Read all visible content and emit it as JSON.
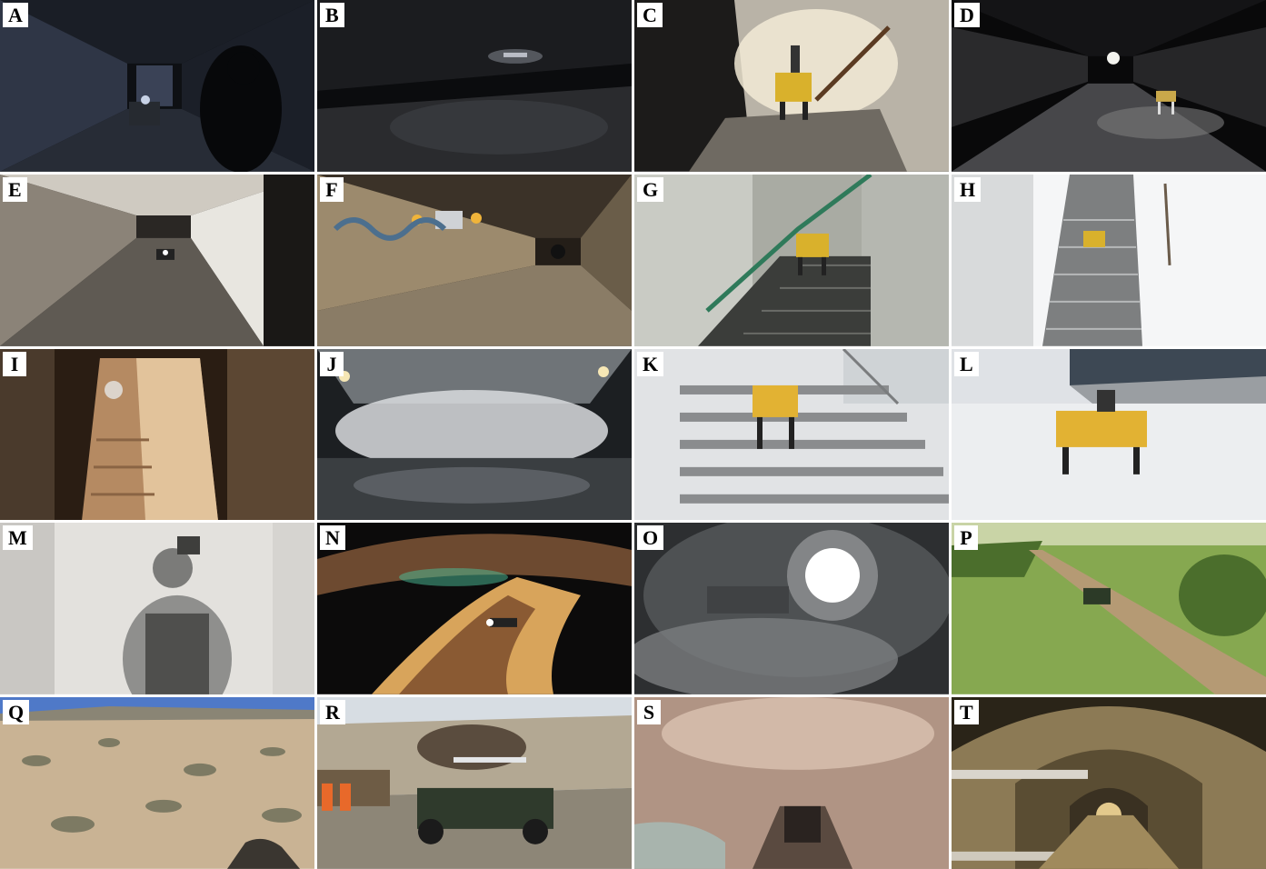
{
  "panels": [
    {
      "letter": "A",
      "theme": "dark-hallway",
      "colors": [
        "#0e1014",
        "#2f3646",
        "#c7d2e6"
      ]
    },
    {
      "letter": "B",
      "theme": "dark-garage",
      "colors": [
        "#0b0c0e",
        "#3a3c40",
        "#e6e9f0"
      ]
    },
    {
      "letter": "C",
      "theme": "lit-stairwell",
      "colors": [
        "#1c1b1a",
        "#b9b3a7",
        "#f2ead6"
      ]
    },
    {
      "letter": "D",
      "theme": "dark-tunnel",
      "colors": [
        "#09090a",
        "#47474a",
        "#f3f3ee"
      ]
    },
    {
      "letter": "E",
      "theme": "tiled-corridor",
      "colors": [
        "#2a2724",
        "#8b8378",
        "#e8e6e0"
      ]
    },
    {
      "letter": "F",
      "theme": "graffiti-tunnel",
      "colors": [
        "#241e18",
        "#9c8a6d",
        "#f0b43a"
      ]
    },
    {
      "letter": "G",
      "theme": "green-stairwell",
      "colors": [
        "#3b3d3a",
        "#a9aba3",
        "#2f7a5a"
      ]
    },
    {
      "letter": "H",
      "theme": "snowy-stairs",
      "colors": [
        "#7d7f80",
        "#d8dadb",
        "#f5f6f7"
      ]
    },
    {
      "letter": "I",
      "theme": "narrow-stairwell",
      "colors": [
        "#2a1d13",
        "#b58a62",
        "#e2c39b"
      ]
    },
    {
      "letter": "J",
      "theme": "foggy-mine",
      "colors": [
        "#1c1f22",
        "#6f7478",
        "#d9dcde"
      ]
    },
    {
      "letter": "K",
      "theme": "snowy-steps",
      "colors": [
        "#8a8c8e",
        "#e1e3e5",
        "#e2b233"
      ]
    },
    {
      "letter": "L",
      "theme": "snowy-yard",
      "colors": [
        "#3d4854",
        "#dfe2e6",
        "#e2b233"
      ]
    },
    {
      "letter": "M",
      "theme": "smoke-room",
      "colors": [
        "#8f8f8d",
        "#c9c7c3",
        "#e3e1dd"
      ]
    },
    {
      "letter": "N",
      "theme": "cave",
      "colors": [
        "#0c0b0b",
        "#6d4a30",
        "#d8a45b"
      ]
    },
    {
      "letter": "O",
      "theme": "smoke-light",
      "colors": [
        "#2d2f31",
        "#7b7d7f",
        "#ffffff"
      ]
    },
    {
      "letter": "P",
      "theme": "grass-trail",
      "colors": [
        "#4b6e2c",
        "#86a850",
        "#b59a74"
      ]
    },
    {
      "letter": "Q",
      "theme": "desert",
      "colors": [
        "#4f79c8",
        "#c9b394",
        "#7d7a63"
      ]
    },
    {
      "letter": "R",
      "theme": "utv-quarry",
      "colors": [
        "#d7dde3",
        "#8d8677",
        "#2f3a2c"
      ]
    },
    {
      "letter": "S",
      "theme": "rock-tunnel",
      "colors": [
        "#2a2320",
        "#8d7464",
        "#d2b9a8"
      ]
    },
    {
      "letter": "T",
      "theme": "arched-tunnel",
      "colors": [
        "#2a2418",
        "#8c7a55",
        "#e3c98c"
      ]
    }
  ]
}
